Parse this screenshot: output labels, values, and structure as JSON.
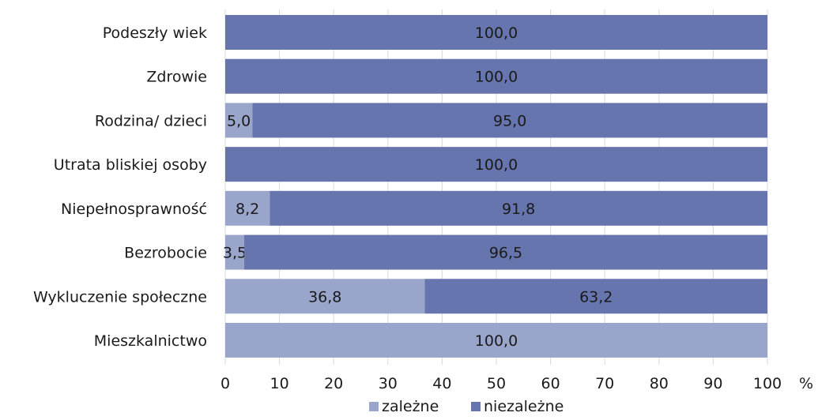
{
  "chart_data": {
    "type": "bar",
    "orientation": "horizontal",
    "stacked": true,
    "categories": [
      "Podeszły wiek",
      "Zdrowie",
      "Rodzina/ dzieci",
      "Utrata bliskiej osoby",
      "Niepełnosprawność",
      "Bezrobocie",
      "Wykluczenie społeczne",
      "Mieszkalnictwo"
    ],
    "series": [
      {
        "name": "zależne",
        "color": "#9aa5cb",
        "values": [
          0,
          0,
          5.0,
          0,
          8.2,
          3.5,
          36.8,
          100.0
        ],
        "labels": [
          "",
          "",
          "5,0",
          "",
          "8,2",
          "3,5",
          "36,8",
          "100,0"
        ]
      },
      {
        "name": "niezależne",
        "color": "#6675ad",
        "values": [
          100.0,
          100.0,
          95.0,
          100.0,
          91.8,
          96.5,
          63.2,
          0
        ],
        "labels": [
          "100,0",
          "100,0",
          "95,0",
          "100,0",
          "91,8",
          "96,5",
          "63,2",
          ""
        ]
      }
    ],
    "xlim": [
      0,
      100
    ],
    "xticks": [
      "0",
      "10",
      "20",
      "30",
      "40",
      "50",
      "60",
      "70",
      "80",
      "90",
      "100"
    ],
    "xunit": "%",
    "grid": true,
    "legend_position": "bottom"
  }
}
